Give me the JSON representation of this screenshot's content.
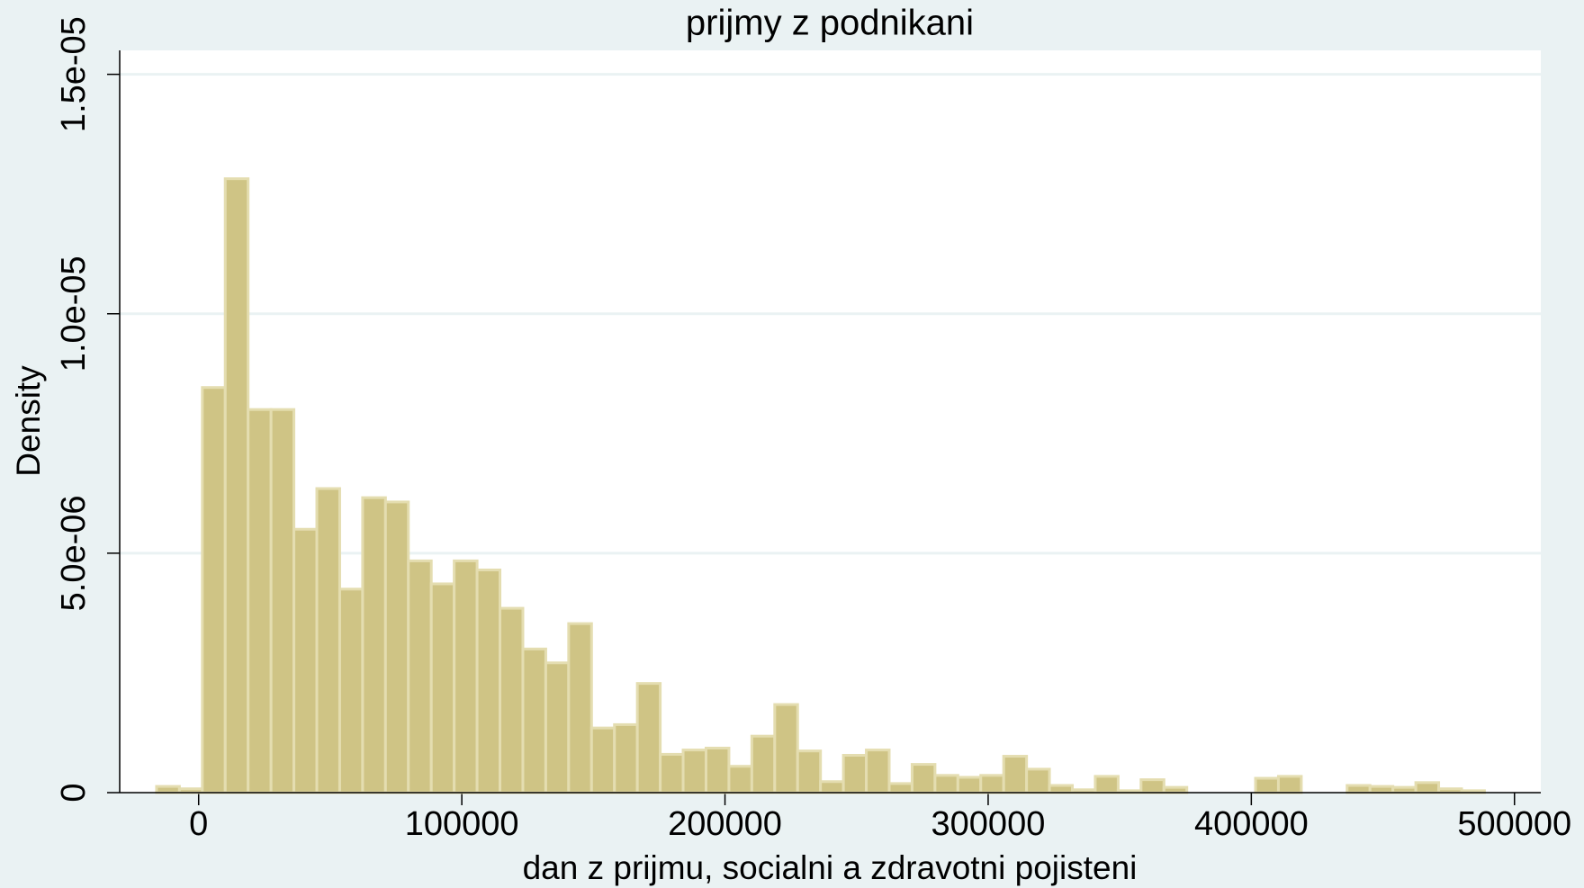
{
  "chart_data": {
    "type": "histogram",
    "title": "prijmy z podnikani",
    "x_label": "dan z prijmu, socialni a zdravotni pojisteni",
    "y_label": "Density",
    "color": "#cfc485",
    "bins": [
      -16000,
      -7300,
      1400,
      10100,
      18800,
      27500,
      36200,
      44900,
      53600,
      62300,
      71000,
      79700,
      88400,
      97100,
      105800,
      114500,
      123200,
      131900,
      140600,
      149300,
      158000,
      166700,
      175400,
      184100,
      192800,
      201500,
      210200,
      218900,
      227600,
      236300,
      245000,
      253700,
      262400,
      271100,
      279800,
      288500,
      297200,
      305900,
      314600,
      323300,
      332000,
      340700,
      349400,
      358100,
      366800,
      375500,
      384200,
      392900,
      401600,
      410300,
      419000,
      427700,
      436400,
      445100,
      453800,
      462500,
      471200,
      479900,
      488600
    ],
    "values": [
      1.3e-07,
      8e-08,
      8.46e-06,
      1.282e-05,
      8e-06,
      8e-06,
      5.5e-06,
      6.35e-06,
      4.25e-06,
      6.16e-06,
      6.07e-06,
      4.84e-06,
      4.36e-06,
      4.84e-06,
      4.65e-06,
      3.85e-06,
      3e-06,
      2.71e-06,
      3.53e-06,
      1.35e-06,
      1.42e-06,
      2.28e-06,
      8e-07,
      8.9e-07,
      9.3e-07,
      5.5e-07,
      1.18e-06,
      1.84e-06,
      8.7e-07,
      2.3e-07,
      7.8e-07,
      8.9e-07,
      1.9e-07,
      5.9e-07,
      3.6e-07,
      3.2e-07,
      3.6e-07,
      7.6e-07,
      4.9e-07,
      1.5e-07,
      6e-08,
      3.4e-07,
      4e-08,
      2.7e-07,
      1.1e-07,
      0,
      0,
      0,
      3e-07,
      3.4e-07,
      0,
      0,
      1.5e-07,
      1.3e-07,
      1.1e-07,
      2.1e-07,
      8e-08,
      4e-08
    ],
    "xlim": [
      -30000,
      510000
    ],
    "ylim": [
      0,
      1.55e-05
    ],
    "xticks": [
      0,
      100000,
      200000,
      300000,
      400000,
      500000
    ],
    "yticks": [
      0,
      {
        "value": 5e-06,
        "label": "5.0e-06"
      },
      {
        "value": 1e-05,
        "label": "1.0e-05"
      },
      {
        "value": 1.5e-05,
        "label": "1.5e-05"
      }
    ],
    "grid": true
  }
}
